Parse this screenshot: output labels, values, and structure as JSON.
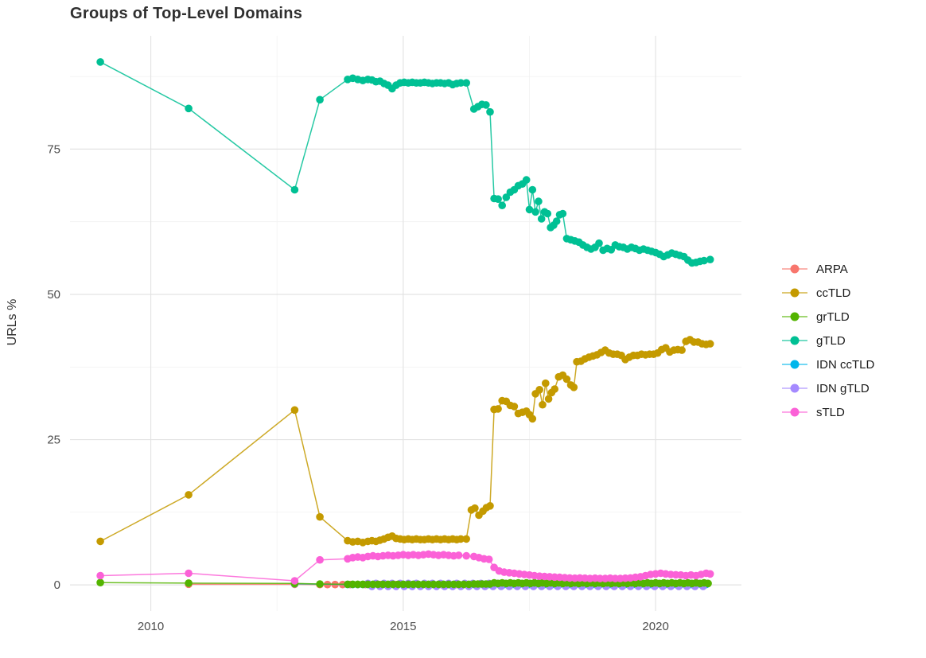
{
  "chart_data": {
    "type": "line",
    "title": "Groups of Top-Level Domains",
    "xlabel": "",
    "ylabel": "URLs %",
    "x_ticks": [
      2010,
      2015,
      2020
    ],
    "x_minor_ticks": [
      2012.5,
      2017.5
    ],
    "y_ticks": [
      0,
      25,
      50,
      75
    ],
    "y_minor_ticks": [
      12.5,
      37.5,
      62.5,
      87.5
    ],
    "x_domain": [
      2008.4,
      2021.7
    ],
    "y_domain": [
      -4.5,
      94.5
    ],
    "grid": true,
    "legend_position": "right",
    "draw_order": [
      "ARPA",
      "ccTLD",
      "IDN ccTLD",
      "IDN gTLD",
      "grTLD",
      "gTLD",
      "sTLD"
    ],
    "series": [
      {
        "name": "ARPA",
        "color": "#F8766D",
        "points": [
          [
            2010.75,
            0.12
          ],
          [
            2012.85,
            0.1
          ]
        ],
        "runs": [
          {
            "x0": 2013.35,
            "x1": 2016.3,
            "step": 0.15,
            "y": 0.06
          }
        ]
      },
      {
        "name": "ccTLD",
        "color": "#C49A00",
        "points": [
          [
            2009.0,
            7.5
          ],
          [
            2010.75,
            15.5
          ],
          [
            2012.85,
            30.1
          ],
          [
            2013.35,
            11.7
          ],
          [
            2013.9,
            7.6
          ],
          [
            2014.0,
            7.4
          ],
          [
            2014.1,
            7.5
          ],
          [
            2014.2,
            7.3
          ],
          [
            2014.3,
            7.5
          ],
          [
            2014.38,
            7.6
          ],
          [
            2014.46,
            7.5
          ],
          [
            2014.54,
            7.7
          ],
          [
            2014.62,
            7.9
          ],
          [
            2014.7,
            8.2
          ],
          [
            2014.78,
            8.4
          ],
          [
            2014.86,
            8.0
          ],
          [
            2014.94,
            7.9
          ],
          [
            2015.02,
            7.8
          ],
          [
            2015.1,
            7.9
          ],
          [
            2015.18,
            7.8
          ],
          [
            2015.26,
            7.9
          ],
          [
            2015.34,
            7.8
          ],
          [
            2015.42,
            7.8
          ],
          [
            2015.5,
            7.9
          ],
          [
            2015.58,
            7.8
          ],
          [
            2015.66,
            7.9
          ],
          [
            2015.74,
            7.8
          ],
          [
            2015.82,
            7.9
          ],
          [
            2015.9,
            7.8
          ],
          [
            2015.98,
            7.9
          ],
          [
            2016.06,
            7.8
          ],
          [
            2016.14,
            7.9
          ],
          [
            2016.25,
            7.9
          ],
          [
            2016.35,
            12.9
          ],
          [
            2016.42,
            13.2
          ],
          [
            2016.5,
            12.0
          ],
          [
            2016.58,
            12.7
          ],
          [
            2016.65,
            13.3
          ],
          [
            2016.72,
            13.6
          ],
          [
            2016.8,
            30.2
          ],
          [
            2016.88,
            30.3
          ],
          [
            2016.96,
            31.7
          ],
          [
            2017.04,
            31.6
          ],
          [
            2017.12,
            30.9
          ],
          [
            2017.2,
            30.7
          ],
          [
            2017.28,
            29.5
          ],
          [
            2017.36,
            29.7
          ],
          [
            2017.44,
            29.9
          ],
          [
            2017.5,
            29.3
          ],
          [
            2017.56,
            28.6
          ],
          [
            2017.62,
            32.9
          ],
          [
            2017.7,
            33.6
          ],
          [
            2017.76,
            31.0
          ],
          [
            2017.82,
            34.7
          ],
          [
            2017.88,
            32.0
          ],
          [
            2017.94,
            33.1
          ],
          [
            2018.0,
            33.7
          ],
          [
            2018.08,
            35.8
          ],
          [
            2018.16,
            36.1
          ],
          [
            2018.24,
            35.4
          ],
          [
            2018.32,
            34.4
          ],
          [
            2018.38,
            34.0
          ],
          [
            2018.44,
            38.4
          ],
          [
            2018.52,
            38.5
          ],
          [
            2018.6,
            38.9
          ],
          [
            2018.68,
            39.2
          ],
          [
            2018.76,
            39.4
          ],
          [
            2018.84,
            39.6
          ],
          [
            2018.92,
            40.0
          ],
          [
            2019.0,
            40.4
          ],
          [
            2019.08,
            39.9
          ],
          [
            2019.16,
            39.7
          ],
          [
            2019.24,
            39.7
          ],
          [
            2019.32,
            39.5
          ],
          [
            2019.4,
            38.8
          ],
          [
            2019.48,
            39.2
          ],
          [
            2019.56,
            39.5
          ],
          [
            2019.64,
            39.5
          ],
          [
            2019.72,
            39.7
          ],
          [
            2019.8,
            39.6
          ],
          [
            2019.88,
            39.7
          ],
          [
            2019.96,
            39.7
          ],
          [
            2020.04,
            39.9
          ],
          [
            2020.12,
            40.5
          ],
          [
            2020.2,
            40.8
          ],
          [
            2020.28,
            40.1
          ],
          [
            2020.36,
            40.4
          ],
          [
            2020.44,
            40.5
          ],
          [
            2020.52,
            40.4
          ],
          [
            2020.6,
            41.9
          ],
          [
            2020.68,
            42.2
          ],
          [
            2020.76,
            41.8
          ],
          [
            2020.84,
            41.8
          ],
          [
            2020.92,
            41.5
          ],
          [
            2021.0,
            41.4
          ],
          [
            2021.08,
            41.5
          ]
        ]
      },
      {
        "name": "grTLD",
        "color": "#53B400",
        "points": [
          [
            2009.0,
            0.4
          ],
          [
            2010.75,
            0.3
          ],
          [
            2012.85,
            0.25
          ],
          [
            2013.35,
            0.15
          ]
        ],
        "runs": [
          {
            "x0": 2013.9,
            "x1": 2016.3,
            "step": 0.1,
            "y": 0.1
          },
          {
            "x0": 2016.4,
            "x1": 2016.72,
            "step": 0.08,
            "y": 0.15
          },
          {
            "x0": 2016.8,
            "x1": 2021.08,
            "step": 0.08,
            "y": 0.3,
            "amplitude": 0.1
          }
        ]
      },
      {
        "name": "gTLD",
        "color": "#00C094",
        "points": [
          [
            2009.0,
            90.0
          ],
          [
            2010.75,
            82.0
          ],
          [
            2012.85,
            68.0
          ],
          [
            2013.35,
            83.5
          ],
          [
            2013.9,
            87.0
          ],
          [
            2014.0,
            87.2
          ],
          [
            2014.1,
            87.0
          ],
          [
            2014.2,
            86.8
          ],
          [
            2014.3,
            87.0
          ],
          [
            2014.38,
            86.9
          ],
          [
            2014.46,
            86.6
          ],
          [
            2014.54,
            86.7
          ],
          [
            2014.62,
            86.3
          ],
          [
            2014.7,
            86.0
          ],
          [
            2014.78,
            85.4
          ],
          [
            2014.86,
            86.0
          ],
          [
            2014.94,
            86.4
          ],
          [
            2015.02,
            86.5
          ],
          [
            2015.1,
            86.4
          ],
          [
            2015.18,
            86.5
          ],
          [
            2015.26,
            86.4
          ],
          [
            2015.34,
            86.4
          ],
          [
            2015.42,
            86.5
          ],
          [
            2015.5,
            86.4
          ],
          [
            2015.58,
            86.3
          ],
          [
            2015.66,
            86.4
          ],
          [
            2015.74,
            86.4
          ],
          [
            2015.82,
            86.3
          ],
          [
            2015.9,
            86.4
          ],
          [
            2015.98,
            86.1
          ],
          [
            2016.06,
            86.3
          ],
          [
            2016.14,
            86.4
          ],
          [
            2016.25,
            86.4
          ],
          [
            2016.4,
            81.9
          ],
          [
            2016.48,
            82.3
          ],
          [
            2016.56,
            82.7
          ],
          [
            2016.64,
            82.6
          ],
          [
            2016.72,
            81.4
          ],
          [
            2016.8,
            66.5
          ],
          [
            2016.88,
            66.4
          ],
          [
            2016.96,
            65.3
          ],
          [
            2017.04,
            66.7
          ],
          [
            2017.12,
            67.6
          ],
          [
            2017.2,
            68.0
          ],
          [
            2017.28,
            68.7
          ],
          [
            2017.36,
            69.0
          ],
          [
            2017.44,
            69.7
          ],
          [
            2017.5,
            64.6
          ],
          [
            2017.56,
            68.0
          ],
          [
            2017.62,
            64.2
          ],
          [
            2017.68,
            66.0
          ],
          [
            2017.74,
            63.0
          ],
          [
            2017.8,
            64.2
          ],
          [
            2017.86,
            63.9
          ],
          [
            2017.92,
            61.5
          ],
          [
            2017.98,
            61.9
          ],
          [
            2018.04,
            62.6
          ],
          [
            2018.1,
            63.7
          ],
          [
            2018.16,
            63.9
          ],
          [
            2018.24,
            59.6
          ],
          [
            2018.32,
            59.4
          ],
          [
            2018.4,
            59.2
          ],
          [
            2018.48,
            59.0
          ],
          [
            2018.56,
            58.5
          ],
          [
            2018.64,
            58.1
          ],
          [
            2018.72,
            57.8
          ],
          [
            2018.8,
            58.1
          ],
          [
            2018.88,
            58.8
          ],
          [
            2018.96,
            57.6
          ],
          [
            2019.04,
            57.9
          ],
          [
            2019.12,
            57.7
          ],
          [
            2019.2,
            58.5
          ],
          [
            2019.28,
            58.2
          ],
          [
            2019.36,
            58.1
          ],
          [
            2019.44,
            57.8
          ],
          [
            2019.52,
            58.1
          ],
          [
            2019.6,
            57.9
          ],
          [
            2019.68,
            57.6
          ],
          [
            2019.76,
            57.8
          ],
          [
            2019.84,
            57.6
          ],
          [
            2019.92,
            57.4
          ],
          [
            2020.0,
            57.2
          ],
          [
            2020.08,
            56.9
          ],
          [
            2020.16,
            56.5
          ],
          [
            2020.24,
            56.8
          ],
          [
            2020.32,
            57.1
          ],
          [
            2020.4,
            56.9
          ],
          [
            2020.48,
            56.7
          ],
          [
            2020.56,
            56.5
          ],
          [
            2020.64,
            55.9
          ],
          [
            2020.72,
            55.4
          ],
          [
            2020.8,
            55.5
          ],
          [
            2020.88,
            55.7
          ],
          [
            2020.96,
            55.8
          ],
          [
            2021.08,
            56.0
          ]
        ]
      },
      {
        "name": "IDN ccTLD",
        "color": "#00B6EB",
        "points": [
          [
            2012.85,
            0.2
          ]
        ],
        "runs": [
          {
            "x0": 2013.9,
            "x1": 2021.08,
            "step": 0.1,
            "y": 0.08
          }
        ]
      },
      {
        "name": "IDN gTLD",
        "color": "#A58AFF",
        "points": [],
        "runs": [
          {
            "x0": 2014.3,
            "x1": 2021.08,
            "step": 0.08,
            "y": 0.0,
            "amplitude": 0.5
          }
        ]
      },
      {
        "name": "sTLD",
        "color": "#FB61D7",
        "points": [
          [
            2009.0,
            1.6
          ],
          [
            2010.75,
            2.0
          ],
          [
            2012.85,
            0.7
          ],
          [
            2013.35,
            4.3
          ],
          [
            2013.9,
            4.5
          ],
          [
            2014.0,
            4.7
          ],
          [
            2014.1,
            4.8
          ],
          [
            2014.2,
            4.7
          ],
          [
            2014.3,
            4.9
          ],
          [
            2014.4,
            5.0
          ],
          [
            2014.5,
            4.9
          ],
          [
            2014.6,
            5.0
          ],
          [
            2014.7,
            5.1
          ],
          [
            2014.8,
            5.0
          ],
          [
            2014.9,
            5.1
          ],
          [
            2015.0,
            5.2
          ],
          [
            2015.1,
            5.1
          ],
          [
            2015.2,
            5.2
          ],
          [
            2015.3,
            5.1
          ],
          [
            2015.4,
            5.2
          ],
          [
            2015.5,
            5.3
          ],
          [
            2015.6,
            5.2
          ],
          [
            2015.7,
            5.1
          ],
          [
            2015.8,
            5.2
          ],
          [
            2015.9,
            5.1
          ],
          [
            2016.0,
            5.0
          ],
          [
            2016.1,
            5.1
          ],
          [
            2016.25,
            5.0
          ],
          [
            2016.4,
            4.9
          ],
          [
            2016.5,
            4.7
          ],
          [
            2016.6,
            4.5
          ],
          [
            2016.7,
            4.4
          ],
          [
            2016.8,
            3.0
          ],
          [
            2016.9,
            2.4
          ],
          [
            2017.0,
            2.2
          ],
          [
            2017.1,
            2.1
          ],
          [
            2017.2,
            2.0
          ],
          [
            2017.3,
            1.9
          ],
          [
            2017.4,
            1.8
          ],
          [
            2017.5,
            1.7
          ],
          [
            2017.6,
            1.6
          ],
          [
            2017.7,
            1.5
          ],
          [
            2017.8,
            1.45
          ],
          [
            2017.9,
            1.4
          ],
          [
            2018.0,
            1.35
          ],
          [
            2018.1,
            1.3
          ],
          [
            2018.2,
            1.25
          ],
          [
            2018.3,
            1.2
          ],
          [
            2018.4,
            1.15
          ],
          [
            2018.5,
            1.2
          ],
          [
            2018.6,
            1.15
          ],
          [
            2018.7,
            1.1
          ],
          [
            2018.8,
            1.15
          ],
          [
            2018.9,
            1.1
          ],
          [
            2019.0,
            1.1
          ],
          [
            2019.1,
            1.15
          ],
          [
            2019.2,
            1.1
          ],
          [
            2019.3,
            1.1
          ],
          [
            2019.4,
            1.15
          ],
          [
            2019.5,
            1.2
          ],
          [
            2019.6,
            1.3
          ],
          [
            2019.7,
            1.4
          ],
          [
            2019.8,
            1.6
          ],
          [
            2019.9,
            1.8
          ],
          [
            2020.0,
            1.9
          ],
          [
            2020.1,
            2.0
          ],
          [
            2020.2,
            1.9
          ],
          [
            2020.3,
            1.8
          ],
          [
            2020.4,
            1.75
          ],
          [
            2020.5,
            1.7
          ],
          [
            2020.6,
            1.6
          ],
          [
            2020.7,
            1.7
          ],
          [
            2020.8,
            1.6
          ],
          [
            2020.9,
            1.8
          ],
          [
            2021.0,
            2.0
          ],
          [
            2021.08,
            1.9
          ]
        ]
      }
    ]
  },
  "legend": {
    "items": [
      "ARPA",
      "ccTLD",
      "grTLD",
      "gTLD",
      "IDN ccTLD",
      "IDN gTLD",
      "sTLD"
    ]
  },
  "colors": {
    "grid_major": "#E3E3E3",
    "grid_minor": "#F1F1F1",
    "tick_text": "#4d4d4d",
    "title_text": "#2f2f2f"
  }
}
